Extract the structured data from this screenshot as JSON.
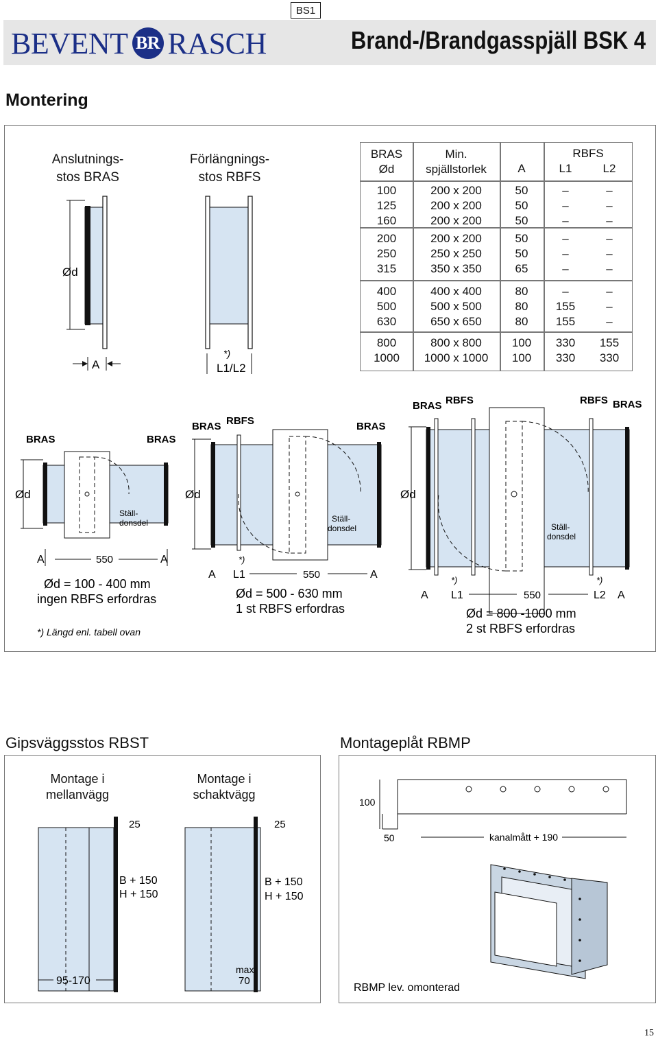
{
  "header": {
    "tag": "BS1",
    "logo_left": "BEVENT",
    "logo_mark": "BR",
    "logo_right": "RASCH",
    "title": "Brand-/Brandgasspjäll BSK 4"
  },
  "montering": {
    "heading": "Montering",
    "bras_label_1": "Anslutnings-",
    "bras_label_2": "stos BRAS",
    "rbfs_label_1": "Förlängnings-",
    "rbfs_label_2": "stos RBFS",
    "od": "Ød",
    "a": "A",
    "star": "*)",
    "l1l2": "L1/L2",
    "table": {
      "h_bras": "BRAS",
      "h_od": "Ød",
      "h_min": "Min.",
      "h_spj": "spjällstorlek",
      "h_a": "A",
      "h_rbfs": "RBFS",
      "h_l1": "L1",
      "h_l2": "L2",
      "groups": [
        [
          [
            "100",
            "200 x 200",
            "50",
            "–",
            "–"
          ],
          [
            "125",
            "200 x 200",
            "50",
            "–",
            "–"
          ],
          [
            "160",
            "200 x 200",
            "50",
            "–",
            "–"
          ]
        ],
        [
          [
            "200",
            "200 x 200",
            "50",
            "–",
            "–"
          ],
          [
            "250",
            "250 x 250",
            "50",
            "–",
            "–"
          ],
          [
            "315",
            "350 x 350",
            "65",
            "–",
            "–"
          ]
        ],
        [
          [
            "400",
            "400 x 400",
            "80",
            "–",
            "–"
          ],
          [
            "500",
            "500 x 500",
            "80",
            "155",
            "–"
          ],
          [
            "630",
            "650 x 650",
            "80",
            "155",
            "–"
          ]
        ],
        [
          [
            "800",
            "800 x 800",
            "100",
            "330",
            "155"
          ],
          [
            "1000",
            "1000 x 1000",
            "100",
            "330",
            "330"
          ]
        ]
      ]
    },
    "diag1": {
      "bras_l": "BRAS",
      "bras_r": "BRAS",
      "od": "Ød",
      "stall": "Ställ-",
      "stall2": "donsdel",
      "a": "A",
      "dim": "550",
      "cap1": "Ød = 100 - 400 mm",
      "cap2": "ingen RBFS erfordras",
      "note": "*) Längd enl. tabell ovan"
    },
    "diag2": {
      "bras_l": "BRAS",
      "rbfs": "RBFS",
      "bras_r": "BRAS",
      "od": "Ød",
      "stall": "Ställ-",
      "stall2": "donsdel",
      "a": "A",
      "star": "*)",
      "l1": "L1",
      "dim": "550",
      "cap1": "Ød = 500 - 630 mm",
      "cap2": "1 st RBFS erfordras"
    },
    "diag3": {
      "bras_l": "BRAS",
      "rbfs_l": "RBFS",
      "rbfs_r": "RBFS",
      "bras_r": "BRAS",
      "od": "Ød",
      "stall": "Ställ-",
      "stall2": "donsdel",
      "a": "A",
      "star": "*)",
      "l1": "L1",
      "l2": "L2",
      "dim": "550",
      "cap1": "Ød = 800 -1000 mm",
      "cap2": "2 st RBFS erfordras"
    }
  },
  "rbst": {
    "heading": "Gipsväggsstos RBST",
    "m1_1": "Montage i",
    "m1_2": "mellanvägg",
    "m2_1": "Montage i",
    "m2_2": "schaktvägg",
    "d25": "25",
    "bh1": "B + 150",
    "bh2": "H + 150",
    "range": "95-170",
    "max": "max",
    "max_val": "70"
  },
  "rbmp": {
    "heading": "Montageplåt RBMP",
    "d100": "100",
    "d50": "50",
    "kanal": "kanalmått + 190",
    "note": "RBMP lev. omonterad"
  },
  "page_number": "15",
  "colors": {
    "brand": "#1b2f87",
    "duct": "#d6e4f2",
    "header_bg": "#e6e6e6"
  }
}
